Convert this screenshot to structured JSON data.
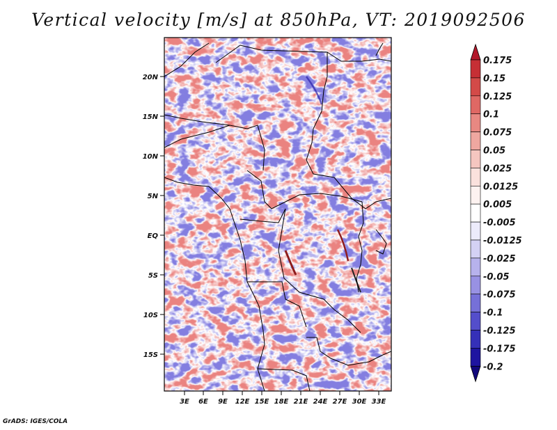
{
  "title": "Vertical velocity [m/s] at 850hPa, VT: 2019092506",
  "footer": "GrADS: IGES/COLA",
  "map": {
    "lat_ticks": [
      "20N",
      "15N",
      "10N",
      "5N",
      "EQ",
      "5S",
      "10S",
      "15S"
    ],
    "lon_ticks": [
      "3E",
      "6E",
      "9E",
      "12E",
      "15E",
      "18E",
      "21E",
      "24E",
      "27E",
      "30E",
      "33E"
    ]
  },
  "colorbar": {
    "labels": [
      "0.175",
      "0.15",
      "0.125",
      "0.1",
      "0.075",
      "0.05",
      "0.025",
      "0.0125",
      "0.005",
      "-0.005",
      "-0.0125",
      "-0.025",
      "-0.05",
      "-0.075",
      "-0.1",
      "-0.125",
      "-0.175",
      "-0.2"
    ],
    "colors": [
      "#b2182b",
      "#c62f35",
      "#d34a48",
      "#df6864",
      "#e88882",
      "#efa7a0",
      "#f5c6c0",
      "#fae1dd",
      "#fdf2f0",
      "#ffffff",
      "#ecebfb",
      "#d4d1f4",
      "#b7b2ec",
      "#9891e3",
      "#7670d8",
      "#544ecb",
      "#3530b8",
      "#1e14a0",
      "#12087c"
    ]
  },
  "colors": {
    "rising": "#e04a48",
    "sinking": "#3b33c4",
    "background": "#ffffff"
  }
}
